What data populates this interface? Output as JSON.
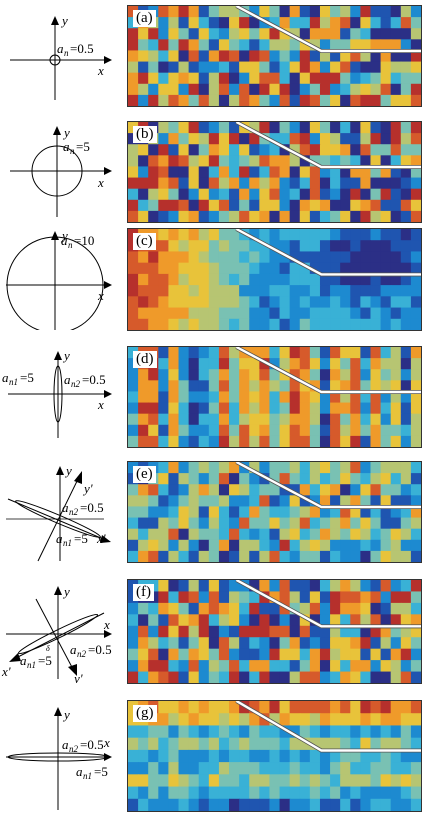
{
  "panels": [
    {
      "label": "(a)",
      "annotations": [
        "y",
        "x",
        "a",
        "n",
        "=0.5"
      ]
    },
    {
      "label": "(b)",
      "annotations": [
        "y",
        "x",
        "a",
        "n",
        "=5"
      ]
    },
    {
      "label": "(c)",
      "annotations": [
        "y",
        "x",
        "a",
        "n",
        "=10"
      ]
    },
    {
      "label": "(d)",
      "annotations": [
        "y",
        "x",
        "a",
        "n1",
        "=5",
        "a",
        "n2",
        "=0.5"
      ]
    },
    {
      "label": "(e)",
      "annotations": [
        "y",
        "y'",
        "x'",
        "a",
        "n2",
        "=0.5",
        "a",
        "n1",
        "=5"
      ]
    },
    {
      "label": "(f)",
      "annotations": [
        "y",
        "x",
        "x'",
        "y'",
        "a",
        "n1",
        "=5",
        "a",
        "n2",
        "=0.5",
        "δ"
      ]
    },
    {
      "label": "(g)",
      "annotations": [
        "y",
        "x",
        "a",
        "n2",
        "=0.5",
        "a",
        "n1",
        "=5"
      ]
    }
  ],
  "colormap": [
    "#2b2f86",
    "#1f55b0",
    "#1d8ad0",
    "#39b1d6",
    "#79c1b3",
    "#b7c572",
    "#e8c33a",
    "#ef9a2a",
    "#d65a2b",
    "#b6302c"
  ]
}
